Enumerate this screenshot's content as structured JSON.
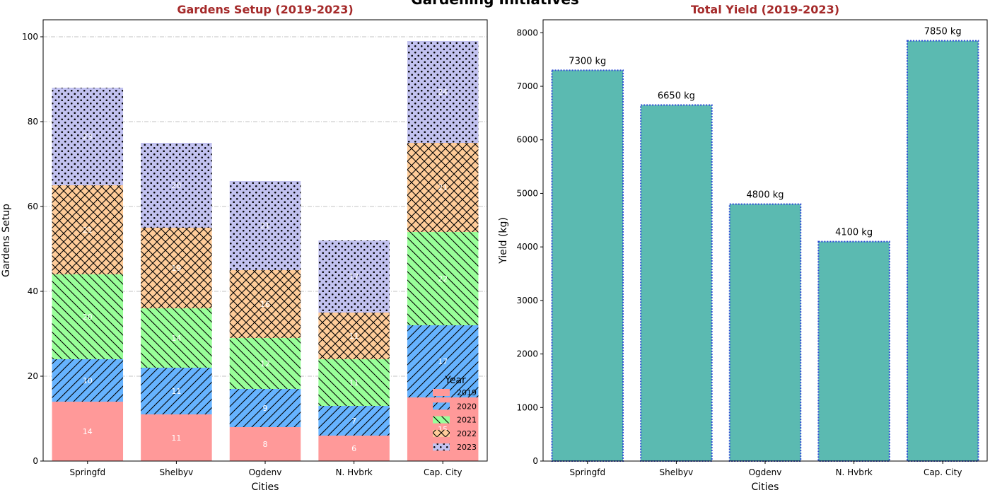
{
  "figure": {
    "title": "Gardening Initiatives"
  },
  "chart_data": [
    {
      "type": "bar",
      "stacked": true,
      "title": "Gardens Setup (2019-2023)",
      "xlabel": "Cities",
      "ylabel": "Gardens Setup",
      "categories": [
        "Springfd",
        "Shelbyv",
        "Ogdenv",
        "N. Hvbrk",
        "Cap. City"
      ],
      "ylim": [
        0,
        104
      ],
      "yticks": [
        0,
        20,
        40,
        60,
        80,
        100
      ],
      "grid": true,
      "legend": {
        "title": "Year",
        "placement": "lower-right"
      },
      "series": [
        {
          "name": "2019",
          "values": [
            14,
            11,
            8,
            6,
            15
          ],
          "color": "#ff9999",
          "hatch": "none"
        },
        {
          "name": "2020",
          "values": [
            10,
            11,
            9,
            7,
            17
          ],
          "color": "#66b3ff",
          "hatch": "diagonal"
        },
        {
          "name": "2021",
          "values": [
            20,
            14,
            12,
            11,
            22
          ],
          "color": "#99ff99",
          "hatch": "anti-diagonal"
        },
        {
          "name": "2022",
          "values": [
            21,
            19,
            16,
            11,
            21
          ],
          "color": "#ffcc99",
          "hatch": "cross"
        },
        {
          "name": "2023",
          "values": [
            23,
            20,
            21,
            17,
            24
          ],
          "color": "#c2c2f0",
          "hatch": "dots"
        }
      ]
    },
    {
      "type": "bar",
      "title": "Total Yield (2019-2023)",
      "xlabel": "Cities",
      "ylabel": "Yield (kg)",
      "categories": [
        "Springfd",
        "Shelbyv",
        "Ogdenv",
        "N. Hvbrk",
        "Cap. City"
      ],
      "values": [
        7300,
        6650,
        4800,
        4100,
        7850
      ],
      "value_labels": [
        "7300 kg",
        "6650 kg",
        "4800 kg",
        "4100 kg",
        "7850 kg"
      ],
      "ylim": [
        0,
        8242
      ],
      "yticks": [
        0,
        1000,
        2000,
        3000,
        4000,
        5000,
        6000,
        7000,
        8000
      ],
      "grid": false,
      "color": "#5bbab1",
      "edge_color": "#2e4bd6"
    }
  ]
}
